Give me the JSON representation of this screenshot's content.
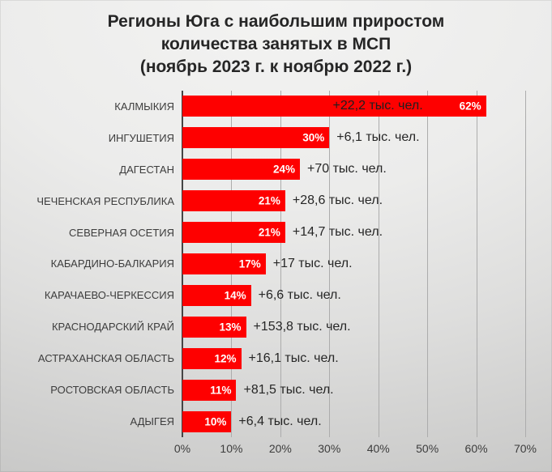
{
  "chart_data": {
    "type": "bar",
    "orientation": "horizontal",
    "title_lines": [
      "Регионы Юга с наибольшим приростом",
      "количества занятых в МСП",
      "(ноябрь 2023 г. к ноябрю 2022 г.)"
    ],
    "xlabel": "",
    "ylabel": "",
    "xlim": [
      0,
      70
    ],
    "x_tick_step": 10,
    "x_ticks": [
      "0%",
      "10%",
      "20%",
      "30%",
      "40%",
      "50%",
      "60%",
      "70%"
    ],
    "grid": "vertical",
    "legend": "none",
    "rows": [
      {
        "region": "КАЛМЫКИЯ",
        "value": 62,
        "pct_label": "62%",
        "annotation": "+22,2 тыс. чел.",
        "annotation_placement": "inside"
      },
      {
        "region": "ИНГУШЕТИЯ",
        "value": 30,
        "pct_label": "30%",
        "annotation": "+6,1 тыс. чел.",
        "annotation_placement": "outside"
      },
      {
        "region": "ДАГЕСТАН",
        "value": 24,
        "pct_label": "24%",
        "annotation": "+70 тыс. чел.",
        "annotation_placement": "outside"
      },
      {
        "region": "ЧЕЧЕНСКАЯ РЕСПУБЛИКА",
        "value": 21,
        "pct_label": "21%",
        "annotation": "+28,6 тыс. чел.",
        "annotation_placement": "outside"
      },
      {
        "region": "СЕВЕРНАЯ ОСЕТИЯ",
        "value": 21,
        "pct_label": "21%",
        "annotation": "+14,7 тыс. чел.",
        "annotation_placement": "outside"
      },
      {
        "region": "КАБАРДИНО-БАЛКАРИЯ",
        "value": 17,
        "pct_label": "17%",
        "annotation": "+17 тыс. чел.",
        "annotation_placement": "outside"
      },
      {
        "region": "КАРАЧАЕВО-ЧЕРКЕССИЯ",
        "value": 14,
        "pct_label": "14%",
        "annotation": "+6,6 тыс. чел.",
        "annotation_placement": "outside"
      },
      {
        "region": "КРАСНОДАРСКИЙ КРАЙ",
        "value": 13,
        "pct_label": "13%",
        "annotation": "+153,8 тыс. чел.",
        "annotation_placement": "outside"
      },
      {
        "region": "АСТРАХАНСКАЯ ОБЛАСТЬ",
        "value": 12,
        "pct_label": "12%",
        "annotation": "+16,1 тыс. чел.",
        "annotation_placement": "outside"
      },
      {
        "region": "РОСТОВСКАЯ ОБЛАСТЬ",
        "value": 11,
        "pct_label": "11%",
        "annotation": "+81,5 тыс. чел.",
        "annotation_placement": "outside"
      },
      {
        "region": "АДЫГЕЯ",
        "value": 10,
        "pct_label": "10%",
        "annotation": "+6,4 тыс. чел.",
        "annotation_placement": "outside"
      }
    ],
    "colors": {
      "bar": "#fe0000",
      "pct_text": "#ffffff",
      "annotation_text": "#262626",
      "annotation_inside_text": "#1f1f1f",
      "region_text": "#3d3d3d",
      "tick_text": "#3d3d3d",
      "grid": "#acacac",
      "axis": "#454545",
      "title_text": "#262626"
    }
  }
}
